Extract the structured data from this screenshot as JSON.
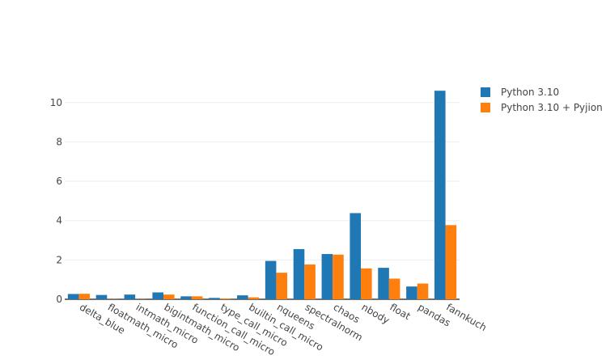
{
  "chart_data": {
    "type": "bar",
    "categories": [
      "delta_blue",
      "floatmath_micro",
      "intmath_micro",
      "bigintmath_micro",
      "function_call_micro",
      "type_call_micro",
      "builtin_call_micro",
      "nqueens",
      "spectralnorm",
      "chaos",
      "nbody",
      "float",
      "pandas",
      "fannkuch"
    ],
    "series": [
      {
        "name": "Python 3.10",
        "color": "#1f77b4",
        "values": [
          0.27,
          0.22,
          0.24,
          0.35,
          0.15,
          0.07,
          0.2,
          1.95,
          2.55,
          2.3,
          4.38,
          1.6,
          0.65,
          10.6
        ]
      },
      {
        "name": "Python 3.10 + Pyjion",
        "color": "#ff7f0e",
        "values": [
          0.28,
          0.01,
          0.01,
          0.24,
          0.15,
          0.04,
          0.1,
          1.35,
          1.77,
          2.27,
          1.57,
          1.05,
          0.8,
          3.77
        ]
      }
    ],
    "yticks": [
      0,
      2,
      4,
      6,
      8,
      10
    ],
    "ylim": [
      0,
      11.1
    ],
    "grid": true,
    "legend": "top-right",
    "title": "",
    "xlabel": "",
    "ylabel": ""
  }
}
